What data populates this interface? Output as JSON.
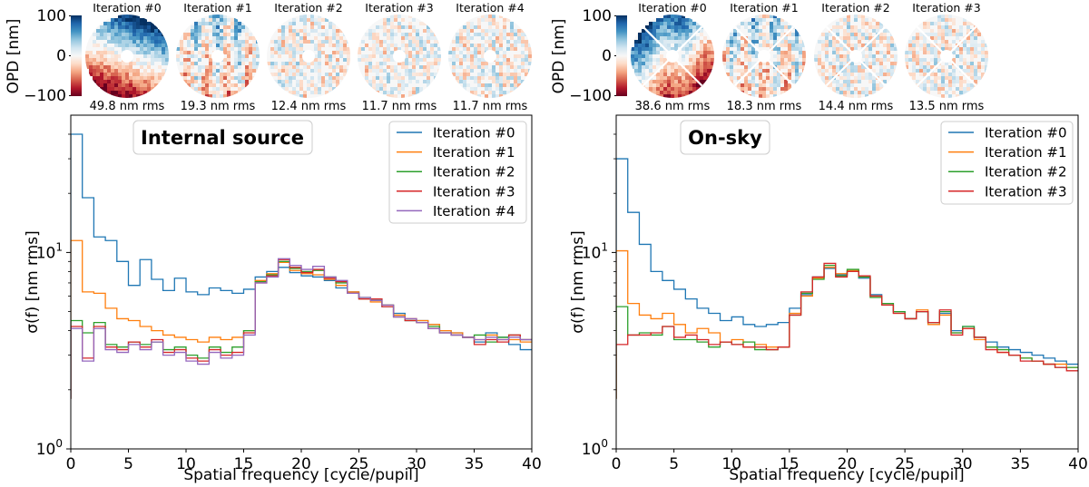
{
  "colors": {
    "iter0": "#1f77b4",
    "iter1": "#ff7f0e",
    "iter2": "#2ca02c",
    "iter3": "#d62728",
    "iter4": "#9467bd",
    "colormap": [
      "#67001f",
      "#b2182b",
      "#d6604d",
      "#f4a582",
      "#fddbc7",
      "#f7f7f7",
      "#d1e5f0",
      "#92c5de",
      "#4393c3",
      "#2166ac",
      "#053061"
    ]
  },
  "colorbar": {
    "label": "OPD [nm]",
    "ticks": [
      "100",
      "0",
      "−100"
    ],
    "range": [
      -100,
      100
    ]
  },
  "chart_data": [
    {
      "type": "line",
      "drawstyle": "steps",
      "title": "Internal source",
      "xlabel": "Spatial frequency [cycle/pupil]",
      "ylabel": "σ(f) [nm rms]",
      "xscale": "linear",
      "yscale": "log",
      "xlim": [
        0,
        40
      ],
      "ylim": [
        1,
        50
      ],
      "xticks": [
        0,
        5,
        10,
        15,
        20,
        25,
        30,
        35,
        40
      ],
      "yticks": [
        {
          "value": 1,
          "label": "10",
          "exp": "0"
        },
        {
          "value": 10,
          "label": "10",
          "exp": "1"
        }
      ],
      "legend_position": "upper right",
      "pupil_maps": [
        {
          "label": "Iteration #0",
          "rms": "49.8 nm rms"
        },
        {
          "label": "Iteration #1",
          "rms": "19.3 nm rms"
        },
        {
          "label": "Iteration #2",
          "rms": "12.4 nm rms"
        },
        {
          "label": "Iteration #3",
          "rms": "11.7 nm rms"
        },
        {
          "label": "Iteration #4",
          "rms": "11.7 nm rms"
        }
      ],
      "x": [
        0,
        1,
        2,
        3,
        4,
        5,
        6,
        7,
        8,
        9,
        10,
        11,
        12,
        13,
        14,
        15,
        16,
        17,
        18,
        19,
        20,
        21,
        22,
        23,
        24,
        25,
        26,
        27,
        28,
        29,
        30,
        31,
        32,
        33,
        34,
        35,
        36,
        37,
        38,
        39
      ],
      "series": [
        {
          "name": "Iteration #0",
          "color": "iter0",
          "values": [
            40,
            19,
            12,
            11.5,
            9,
            6.8,
            9.2,
            7.3,
            6.4,
            7.4,
            6.3,
            6.1,
            6.6,
            6.4,
            6.2,
            6.5,
            7.5,
            8.0,
            8.4,
            7.9,
            7.6,
            7.5,
            7.2,
            6.6,
            6.3,
            5.8,
            5.7,
            5.3,
            4.9,
            4.5,
            4.5,
            4.3,
            4.0,
            3.9,
            3.7,
            3.5,
            3.9,
            3.7,
            3.4,
            3.2
          ]
        },
        {
          "name": "Iteration #1",
          "color": "iter1",
          "values": [
            11.5,
            6.3,
            6.2,
            5.2,
            4.6,
            4.5,
            4.2,
            4.0,
            3.8,
            3.7,
            3.6,
            3.5,
            3.7,
            3.6,
            3.7,
            4.0,
            7.2,
            7.8,
            8.9,
            8.1,
            7.8,
            7.7,
            7.3,
            6.8,
            6.3,
            5.8,
            5.6,
            5.4,
            4.8,
            4.6,
            4.5,
            4.3,
            4.0,
            3.9,
            3.7,
            3.6,
            3.8,
            3.6,
            3.6,
            3.5
          ]
        },
        {
          "name": "Iteration #2",
          "color": "iter2",
          "values": [
            4.5,
            3.9,
            4.4,
            3.4,
            3.3,
            3.5,
            3.4,
            3.5,
            3.2,
            3.3,
            3.0,
            2.9,
            3.3,
            3.1,
            3.3,
            4.0,
            7.1,
            7.7,
            9.0,
            8.3,
            8.0,
            8.1,
            7.5,
            7.0,
            6.2,
            5.9,
            5.8,
            5.4,
            4.7,
            4.5,
            4.4,
            4.2,
            3.9,
            3.8,
            3.7,
            3.8,
            3.5,
            3.7,
            3.8,
            3.6
          ]
        },
        {
          "name": "Iteration #3",
          "color": "iter3",
          "values": [
            4.2,
            2.9,
            4.2,
            3.3,
            3.2,
            3.5,
            3.3,
            3.6,
            3.1,
            3.2,
            2.9,
            2.8,
            3.2,
            3.0,
            3.1,
            3.9,
            7.0,
            7.6,
            9.2,
            8.4,
            7.9,
            8.2,
            7.4,
            7.1,
            6.2,
            5.8,
            5.8,
            5.3,
            4.7,
            4.5,
            4.4,
            4.1,
            3.9,
            3.8,
            3.7,
            3.4,
            3.6,
            3.5,
            3.8,
            3.6
          ]
        },
        {
          "name": "Iteration #4",
          "color": "iter4",
          "values": [
            4.1,
            2.8,
            4.1,
            3.2,
            3.1,
            3.4,
            3.2,
            3.5,
            3.0,
            3.1,
            2.8,
            2.7,
            3.1,
            2.9,
            3.0,
            3.8,
            7.0,
            7.5,
            9.3,
            8.6,
            8.2,
            8.5,
            7.5,
            7.2,
            6.2,
            5.9,
            5.7,
            5.4,
            4.7,
            4.6,
            4.4,
            4.1,
            3.9,
            3.8,
            3.7,
            3.6,
            3.7,
            3.6,
            3.7,
            3.6
          ]
        }
      ]
    },
    {
      "type": "line",
      "drawstyle": "steps",
      "title": "On-sky",
      "xlabel": "Spatial frequency [cycle/pupil]",
      "ylabel": "σ(f) [nm rms]",
      "xscale": "linear",
      "yscale": "log",
      "xlim": [
        0,
        40
      ],
      "ylim": [
        1,
        50
      ],
      "xticks": [
        0,
        5,
        10,
        15,
        20,
        25,
        30,
        35,
        40
      ],
      "yticks": [
        {
          "value": 1,
          "label": "10",
          "exp": "0"
        },
        {
          "value": 10,
          "label": "10",
          "exp": "1"
        }
      ],
      "legend_position": "upper right",
      "pupil_maps": [
        {
          "label": "Iteration #0",
          "rms": "38.6 nm rms"
        },
        {
          "label": "Iteration #1",
          "rms": "18.3 nm rms"
        },
        {
          "label": "Iteration #2",
          "rms": "14.4 nm rms"
        },
        {
          "label": "Iteration #3",
          "rms": "13.5 nm rms"
        }
      ],
      "x": [
        0,
        1,
        2,
        3,
        4,
        5,
        6,
        7,
        8,
        9,
        10,
        11,
        12,
        13,
        14,
        15,
        16,
        17,
        18,
        19,
        20,
        21,
        22,
        23,
        24,
        25,
        26,
        27,
        28,
        29,
        30,
        31,
        32,
        33,
        34,
        35,
        36,
        37,
        38,
        39
      ],
      "series": [
        {
          "name": "Iteration #0",
          "color": "iter0",
          "values": [
            30,
            16,
            11,
            8,
            7.2,
            6.5,
            5.8,
            5.2,
            4.9,
            4.5,
            4.7,
            4.3,
            4.2,
            4.3,
            4.4,
            5.2,
            6.1,
            7.5,
            8.3,
            7.7,
            8.0,
            7.4,
            6.1,
            5.5,
            5.0,
            4.6,
            5.0,
            4.4,
            4.9,
            4.0,
            4.2,
            3.7,
            3.5,
            3.3,
            3.2,
            3.1,
            3.0,
            2.9,
            2.8,
            2.7
          ]
        },
        {
          "name": "Iteration #1",
          "color": "iter1",
          "values": [
            10.2,
            5.5,
            4.8,
            4.6,
            4.9,
            4.3,
            3.9,
            4.1,
            3.9,
            3.5,
            3.6,
            3.3,
            3.4,
            3.3,
            3.3,
            4.9,
            6.0,
            7.4,
            8.4,
            7.8,
            8.1,
            7.5,
            6.0,
            5.4,
            4.9,
            4.6,
            5.1,
            4.3,
            4.8,
            3.9,
            4.1,
            3.6,
            3.3,
            3.1,
            3.0,
            2.9,
            2.8,
            2.7,
            2.7,
            2.6
          ]
        },
        {
          "name": "Iteration #2",
          "color": "iter2",
          "values": [
            5.3,
            3.8,
            3.9,
            3.8,
            4.2,
            3.6,
            3.6,
            3.5,
            3.3,
            3.5,
            3.4,
            3.5,
            3.2,
            3.2,
            3.3,
            4.8,
            6.2,
            7.3,
            8.6,
            7.6,
            8.2,
            7.5,
            5.9,
            5.5,
            5.0,
            4.6,
            5.0,
            4.4,
            5.0,
            3.9,
            4.2,
            3.7,
            3.3,
            3.2,
            3.0,
            2.9,
            2.8,
            2.7,
            2.6,
            2.6
          ]
        },
        {
          "name": "Iteration #3",
          "color": "iter3",
          "values": [
            3.4,
            3.8,
            3.8,
            3.9,
            4.2,
            3.7,
            3.8,
            3.6,
            3.4,
            3.5,
            3.4,
            3.3,
            3.3,
            3.2,
            3.3,
            4.8,
            6.3,
            7.5,
            8.8,
            7.5,
            8.0,
            7.6,
            6.0,
            5.4,
            4.9,
            4.6,
            5.0,
            4.4,
            5.1,
            3.8,
            4.1,
            3.7,
            3.2,
            3.1,
            3.0,
            2.8,
            2.8,
            2.7,
            2.6,
            2.5
          ]
        }
      ]
    }
  ]
}
